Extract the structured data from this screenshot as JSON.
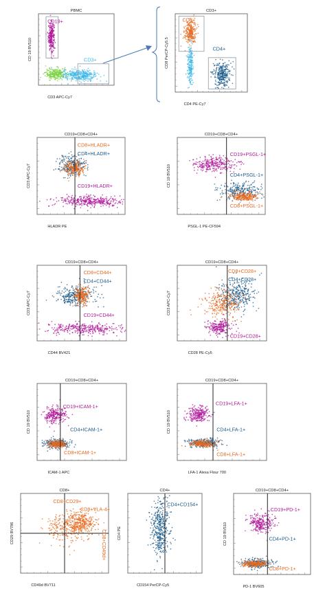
{
  "colors": {
    "cd19": "#b0189a",
    "cd8": "#e8691e",
    "cd4": "#1a5a8a",
    "cd3": "#3ab7ea",
    "neg": "#7bd23a",
    "gate": "#9aa3ad",
    "arrow": "#4a78b8"
  },
  "chart_data": [
    {
      "id": "p1",
      "type": "scatter",
      "title": "PBMC",
      "xlabel": "CD3 APC-Cy7",
      "ylabel": "CD 19 BV510",
      "clusters": [
        {
          "name": "cd19",
          "cx": 0.17,
          "cy": 0.68,
          "sx": 0.02,
          "sy": 0.1,
          "n": 260
        },
        {
          "name": "neg",
          "cx": 0.23,
          "cy": 0.16,
          "sx": 0.07,
          "sy": 0.04,
          "n": 260
        },
        {
          "name": "cd3",
          "cx": 0.55,
          "cy": 0.14,
          "sx": 0.12,
          "sy": 0.04,
          "n": 340
        }
      ],
      "gates": [
        {
          "name": "gate-cd19",
          "x0": 0.1,
          "y0": 0.38,
          "x1": 0.26,
          "y1": 0.96
        },
        {
          "name": "gate-cd3",
          "x0": 0.52,
          "y0": 0.02,
          "x1": 0.93,
          "y1": 0.3
        }
      ],
      "labels": [
        {
          "text": "CD19+",
          "color": "cd19",
          "x": 0.12,
          "y": 0.87
        },
        {
          "text": "CD3+",
          "color": "cd3",
          "x": 0.6,
          "y": 0.33
        }
      ]
    },
    {
      "id": "p2",
      "type": "scatter",
      "title": "CD3+",
      "xlabel": "CD4 PE-Cy7",
      "ylabel": "CD8 PerCP-Cy5.5",
      "clusters": [
        {
          "name": "cd8",
          "cx": 0.21,
          "cy": 0.77,
          "sx": 0.04,
          "sy": 0.08,
          "n": 260
        },
        {
          "name": "cd3",
          "cx": 0.21,
          "cy": 0.35,
          "sx": 0.02,
          "sy": 0.12,
          "n": 200
        },
        {
          "name": "cd4",
          "cx": 0.64,
          "cy": 0.22,
          "sx": 0.06,
          "sy": 0.08,
          "n": 300
        }
      ],
      "gates": [
        {
          "name": "gate-cd8",
          "x0": 0.05,
          "y0": 0.52,
          "x1": 0.4,
          "y1": 0.97
        },
        {
          "name": "gate-cd4",
          "x0": 0.46,
          "y0": 0.04,
          "x1": 0.84,
          "y1": 0.44
        }
      ],
      "labels": [
        {
          "text": "CD8+",
          "color": "cd8",
          "x": 0.1,
          "y": 0.9
        },
        {
          "text": "CD4+",
          "color": "cd4",
          "x": 0.52,
          "y": 0.53
        }
      ]
    },
    {
      "id": "p3",
      "type": "scatter",
      "title": "CD19+CD8+CD4+",
      "xlabel": "HLADR PE",
      "ylabel": "CD3 APC-Cy7",
      "divider": 0.43,
      "clusters": [
        {
          "name": "cd4",
          "cx": 0.4,
          "cy": 0.63,
          "sx": 0.08,
          "sy": 0.07,
          "n": 260
        },
        {
          "name": "cd8",
          "cx": 0.42,
          "cy": 0.6,
          "sx": 0.06,
          "sy": 0.05,
          "n": 220
        },
        {
          "name": "cd19",
          "cx": 0.6,
          "cy": 0.17,
          "sx": 0.2,
          "sy": 0.035,
          "n": 380
        }
      ],
      "labels": [
        {
          "text": "CD8+HLADR+",
          "color": "cd8",
          "x": 0.46,
          "y": 0.88
        },
        {
          "text": "CD4+HLADR+",
          "color": "cd4",
          "x": 0.46,
          "y": 0.77
        },
        {
          "text": "CD19+HLADR+",
          "color": "cd19",
          "x": 0.46,
          "y": 0.35
        }
      ]
    },
    {
      "id": "p4",
      "type": "scatter",
      "title": "CD19+CD8+CD4+",
      "xlabel": "PSGL-1 PE-CF594",
      "ylabel": "CD 19 BV510",
      "divider": 0.56,
      "clusters": [
        {
          "name": "cd19",
          "cx": 0.42,
          "cy": 0.65,
          "sx": 0.12,
          "sy": 0.05,
          "n": 300
        },
        {
          "name": "cd4",
          "cx": 0.72,
          "cy": 0.3,
          "sx": 0.12,
          "sy": 0.06,
          "n": 260
        },
        {
          "name": "cd8",
          "cx": 0.75,
          "cy": 0.23,
          "sx": 0.08,
          "sy": 0.03,
          "n": 240
        }
      ],
      "labels": [
        {
          "text": "CD19+PSGL-1+",
          "color": "cd19",
          "x": 0.6,
          "y": 0.76
        },
        {
          "text": "CD4+PSGL-1+",
          "color": "cd4",
          "x": 0.6,
          "y": 0.49
        },
        {
          "text": "CD8+PSGL-1+",
          "color": "cd8",
          "x": 0.6,
          "y": 0.09
        }
      ]
    },
    {
      "id": "p5",
      "type": "scatter",
      "title": "CD19+CD8+CD4+",
      "xlabel": "CD44 BV421",
      "ylabel": "CD3 APC-Cy7",
      "divider": 0.48,
      "clusters": [
        {
          "name": "cd4",
          "cx": 0.42,
          "cy": 0.6,
          "sx": 0.11,
          "sy": 0.07,
          "n": 280
        },
        {
          "name": "cd8",
          "cx": 0.5,
          "cy": 0.6,
          "sx": 0.04,
          "sy": 0.06,
          "n": 240
        },
        {
          "name": "cd19",
          "cx": 0.5,
          "cy": 0.16,
          "sx": 0.2,
          "sy": 0.04,
          "n": 340
        }
      ],
      "labels": [
        {
          "text": "CD8+CD44+",
          "color": "cd8",
          "x": 0.52,
          "y": 0.88
        },
        {
          "text": "CD4+CD44+",
          "color": "cd4",
          "x": 0.52,
          "y": 0.77
        },
        {
          "text": "CD19+CD44+",
          "color": "cd19",
          "x": 0.52,
          "y": 0.32
        }
      ]
    },
    {
      "id": "p6",
      "type": "scatter",
      "title": "CD19+CD8+CD4+",
      "xlabel": "CD28 PE-Cy5",
      "ylabel": "CD3 APC-Cy7",
      "divider": 0.56,
      "clusters": [
        {
          "name": "cd4",
          "cx": 0.66,
          "cy": 0.62,
          "sx": 0.1,
          "sy": 0.1,
          "n": 340
        },
        {
          "name": "cd8",
          "cx": 0.5,
          "cy": 0.5,
          "sx": 0.1,
          "sy": 0.1,
          "n": 280
        },
        {
          "name": "cd19",
          "cx": 0.47,
          "cy": 0.18,
          "sx": 0.07,
          "sy": 0.05,
          "n": 240
        }
      ],
      "labels": [
        {
          "text": "CD8+CD28+",
          "color": "cd8",
          "x": 0.57,
          "y": 0.9
        },
        {
          "text": "CD4+CD28+",
          "color": "cd4",
          "x": 0.57,
          "y": 0.79
        },
        {
          "text": "CD19+CD28+",
          "color": "cd19",
          "x": 0.59,
          "y": 0.04
        }
      ]
    },
    {
      "id": "p7",
      "type": "scatter",
      "title": "CD19+CD8+CD4+",
      "xlabel": "ICAM-1 APC",
      "ylabel": "CD 19 BV510",
      "divider": 0.26,
      "clusters": [
        {
          "name": "cd19",
          "cx": 0.2,
          "cy": 0.59,
          "sx": 0.06,
          "sy": 0.05,
          "n": 260
        },
        {
          "name": "cd4",
          "cx": 0.22,
          "cy": 0.22,
          "sx": 0.07,
          "sy": 0.03,
          "n": 240
        },
        {
          "name": "cd8",
          "cx": 0.22,
          "cy": 0.21,
          "sx": 0.05,
          "sy": 0.025,
          "n": 220
        }
      ],
      "labels": [
        {
          "text": "CD19+ICAM-1+",
          "color": "cd19",
          "x": 0.29,
          "y": 0.68
        },
        {
          "text": "CD4+ICAM-1+",
          "color": "cd4",
          "x": 0.37,
          "y": 0.38
        },
        {
          "text": "CD8+ICAM-1+",
          "color": "cd8",
          "x": 0.3,
          "y": 0.08
        }
      ]
    },
    {
      "id": "p8",
      "type": "scatter",
      "title": "CD19+CD8+CD4+",
      "xlabel": "LFA-1 Alexa Flour 700",
      "ylabel": "CD 19 BV510",
      "divider": 0.4,
      "clusters": [
        {
          "name": "cd19",
          "cx": 0.24,
          "cy": 0.6,
          "sx": 0.06,
          "sy": 0.05,
          "n": 260
        },
        {
          "name": "cd4",
          "cx": 0.3,
          "cy": 0.23,
          "sx": 0.1,
          "sy": 0.03,
          "n": 240
        },
        {
          "name": "cd8",
          "cx": 0.28,
          "cy": 0.22,
          "sx": 0.07,
          "sy": 0.025,
          "n": 220
        }
      ],
      "labels": [
        {
          "text": "CD19+LFA-1+",
          "color": "cd19",
          "x": 0.43,
          "y": 0.72
        },
        {
          "text": "CD4+LFA-1+",
          "color": "cd4",
          "x": 0.44,
          "y": 0.38
        },
        {
          "text": "CD8+LFA-1+",
          "color": "cd8",
          "x": 0.44,
          "y": 0.06
        }
      ]
    },
    {
      "id": "p9",
      "type": "scatter",
      "title": "CD8+",
      "xlabel": "CD49d BV711",
      "ylabel": "CD29 BV786",
      "divider": 0.5,
      "hdivider": 0.5,
      "clusters": [
        {
          "name": "cd8",
          "cx": 0.55,
          "cy": 0.58,
          "sx": 0.12,
          "sy": 0.1,
          "n": 300
        },
        {
          "name": "cd8",
          "cx": 0.7,
          "cy": 0.64,
          "sx": 0.07,
          "sy": 0.07,
          "n": 240
        }
      ],
      "labels": [
        {
          "text": "CD8+CD29+",
          "color": "cd8",
          "x": 0.37,
          "y": 0.88
        },
        {
          "text": "CD8+VLA-4+",
          "color": "cd8",
          "x": 0.68,
          "y": 0.78
        },
        {
          "text": "CD8+CD49d+",
          "color": "cd8",
          "x": 0.93,
          "y": 0.55,
          "rotate": 90
        }
      ]
    },
    {
      "id": "p10",
      "type": "scatter",
      "title": "CD4+",
      "xlabel": "CD154 PerCP-Cy5",
      "ylabel": "CD4 PE",
      "divider": 0.5,
      "clusters": [
        {
          "name": "cd4",
          "cx": 0.44,
          "cy": 0.55,
          "sx": 0.06,
          "sy": 0.18,
          "n": 420
        }
      ],
      "labels": [
        {
          "text": "CD4+CD154+",
          "color": "cd4",
          "x": 0.53,
          "y": 0.84
        }
      ]
    },
    {
      "id": "p11",
      "type": "scatter",
      "title": "CD19+CD8+CD4+",
      "xlabel": "PD-1 BV605",
      "ylabel": "CD 19 BV510",
      "divider": 0.44,
      "clusters": [
        {
          "name": "cd19",
          "cx": 0.36,
          "cy": 0.63,
          "sx": 0.08,
          "sy": 0.06,
          "n": 260
        },
        {
          "name": "cd4",
          "cx": 0.3,
          "cy": 0.14,
          "sx": 0.1,
          "sy": 0.03,
          "n": 240
        },
        {
          "name": "cd8",
          "cx": 0.28,
          "cy": 0.13,
          "sx": 0.08,
          "sy": 0.02,
          "n": 240
        }
      ],
      "labels": [
        {
          "text": "CD19+PD-1+",
          "color": "cd19",
          "x": 0.48,
          "y": 0.78
        },
        {
          "text": "CD4+PD-1+",
          "color": "cd4",
          "x": 0.46,
          "y": 0.42
        },
        {
          "text": "CD8+PD-1+",
          "color": "cd8",
          "x": 0.46,
          "y": 0.05
        }
      ]
    }
  ]
}
